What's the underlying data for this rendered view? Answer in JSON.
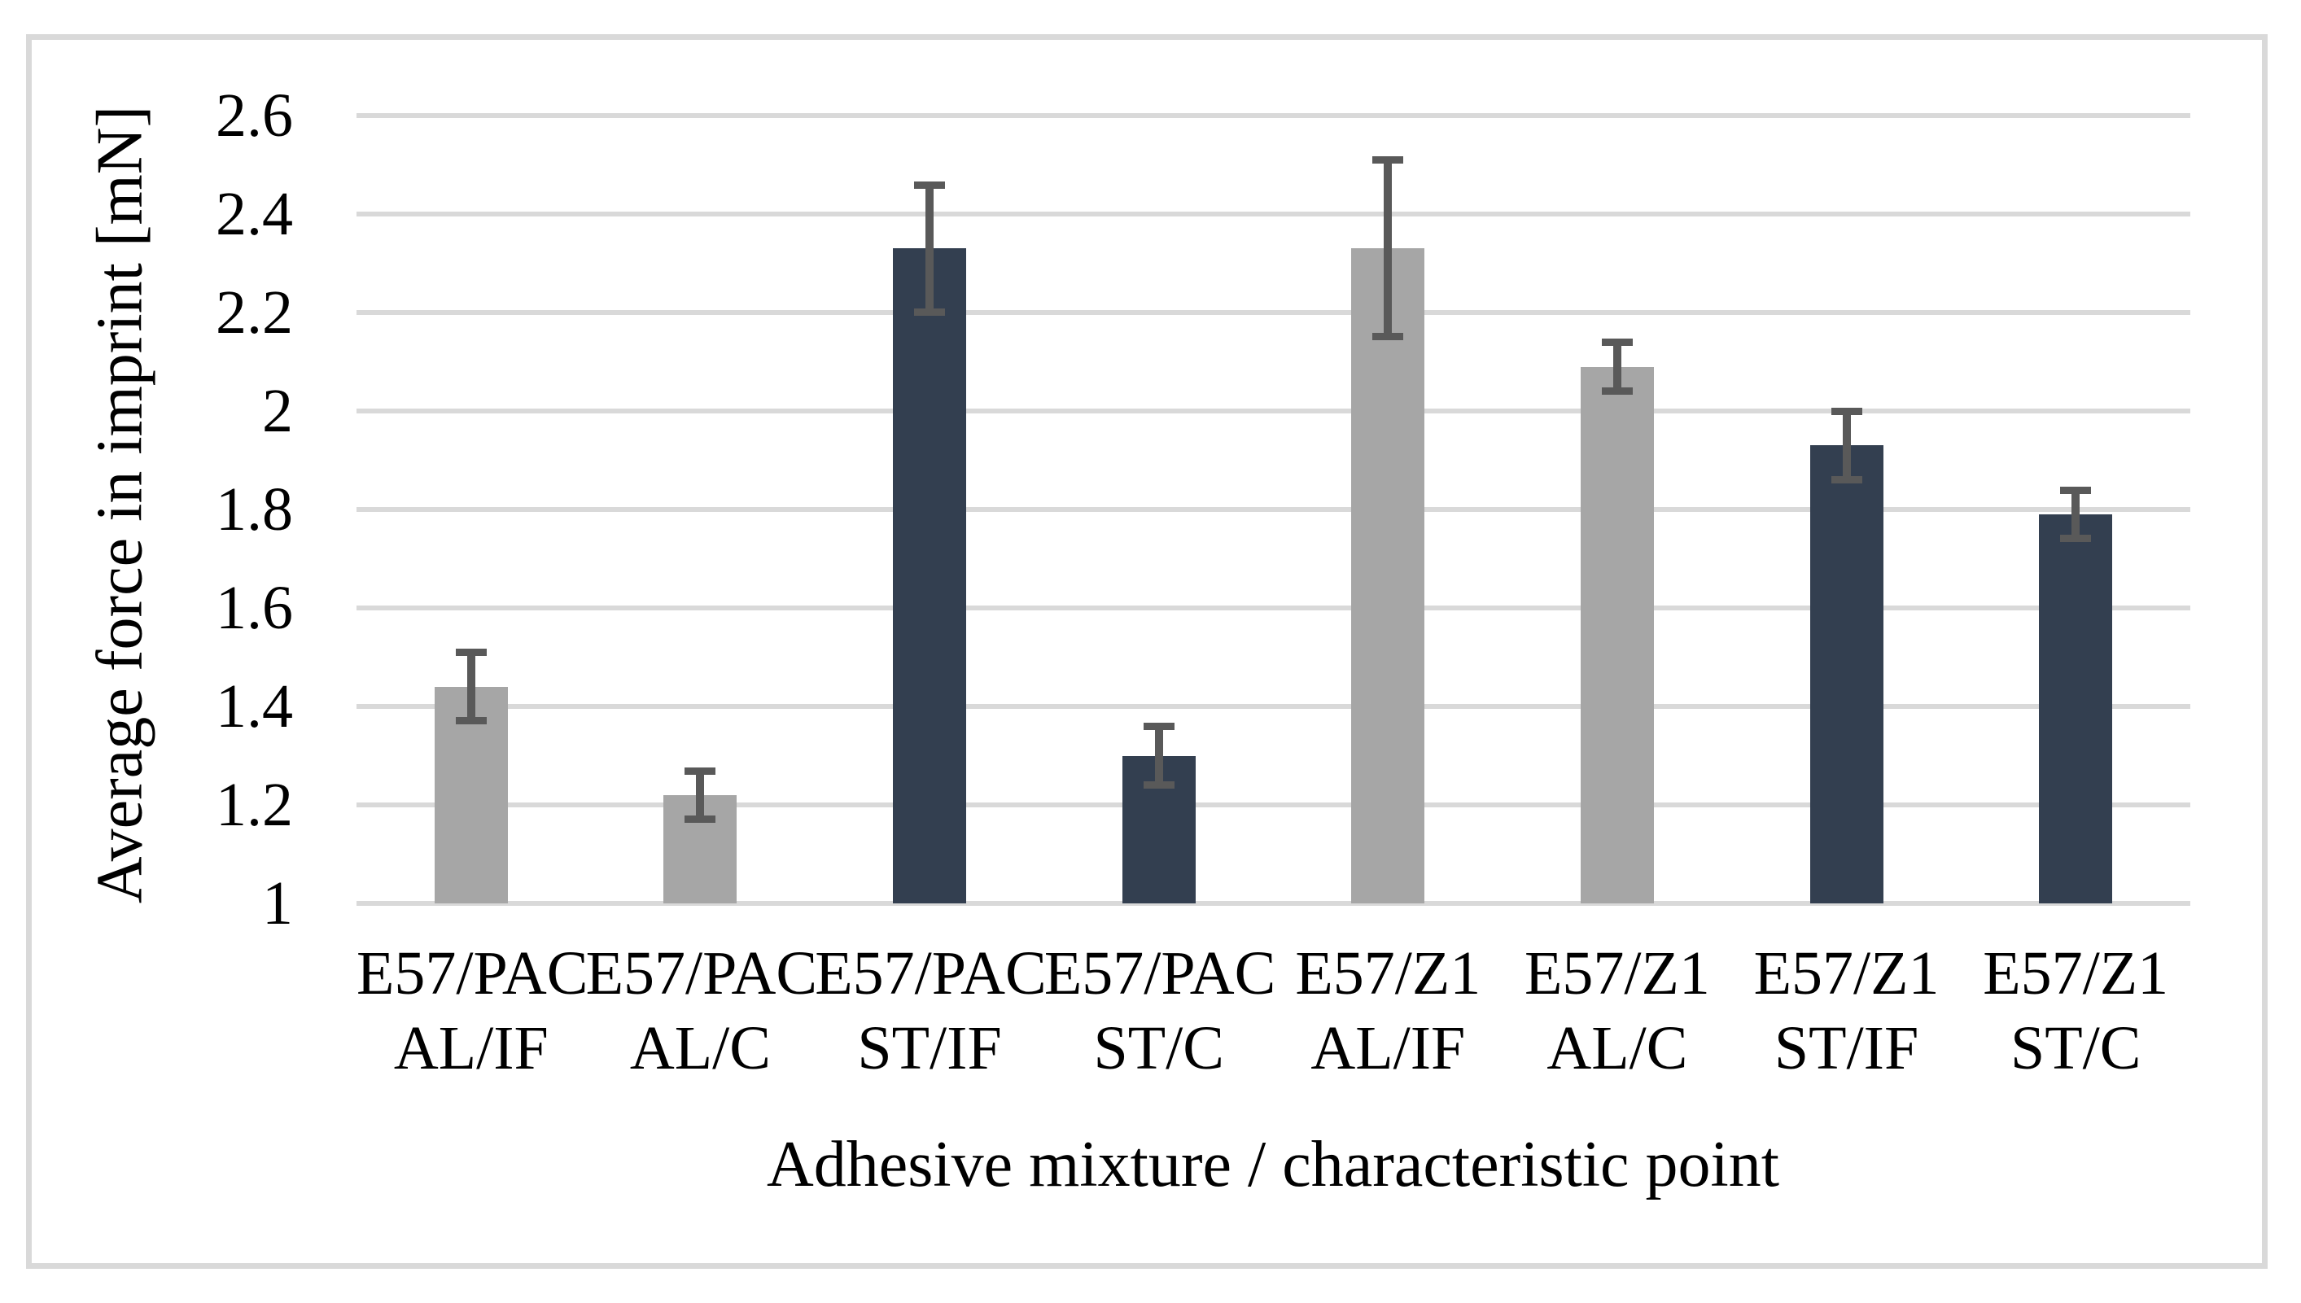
{
  "chart_data": {
    "type": "bar",
    "title": "",
    "xlabel": "Adhesive mixture / characteristic point",
    "ylabel": "Average force in imprint [mN]",
    "ylim": [
      1,
      2.6
    ],
    "ytick_step": 0.2,
    "yticks": [
      "1",
      "1.2",
      "1.4",
      "1.6",
      "1.8",
      "2",
      "2.2",
      "2.4",
      "2.6"
    ],
    "grid": true,
    "legend": "none",
    "categories": [
      {
        "line1": "E57/PAC",
        "line2": "AL/IF"
      },
      {
        "line1": "E57/PAC",
        "line2": "AL/C"
      },
      {
        "line1": "E57/PAC",
        "line2": "ST/IF"
      },
      {
        "line1": "E57/PAC",
        "line2": "ST/C"
      },
      {
        "line1": "E57/Z1",
        "line2": "AL/IF"
      },
      {
        "line1": "E57/Z1",
        "line2": "AL/C"
      },
      {
        "line1": "E57/Z1",
        "line2": "ST/IF"
      },
      {
        "line1": "E57/Z1",
        "line2": "ST/C"
      }
    ],
    "values": [
      1.44,
      1.22,
      2.33,
      1.3,
      2.33,
      2.09,
      1.93,
      1.79
    ],
    "errors": [
      0.07,
      0.05,
      0.13,
      0.06,
      0.18,
      0.05,
      0.07,
      0.05
    ],
    "bar_color_keys": [
      "gray",
      "gray",
      "navy",
      "navy",
      "gray",
      "gray",
      "navy",
      "navy"
    ],
    "colors": {
      "gray": "#a6a6a6",
      "navy": "#333f50",
      "error_bar": "#595959",
      "gridline": "#d9d9d9",
      "frame_border": "#d9d9d9",
      "text": "#000000",
      "background": "#ffffff"
    }
  }
}
